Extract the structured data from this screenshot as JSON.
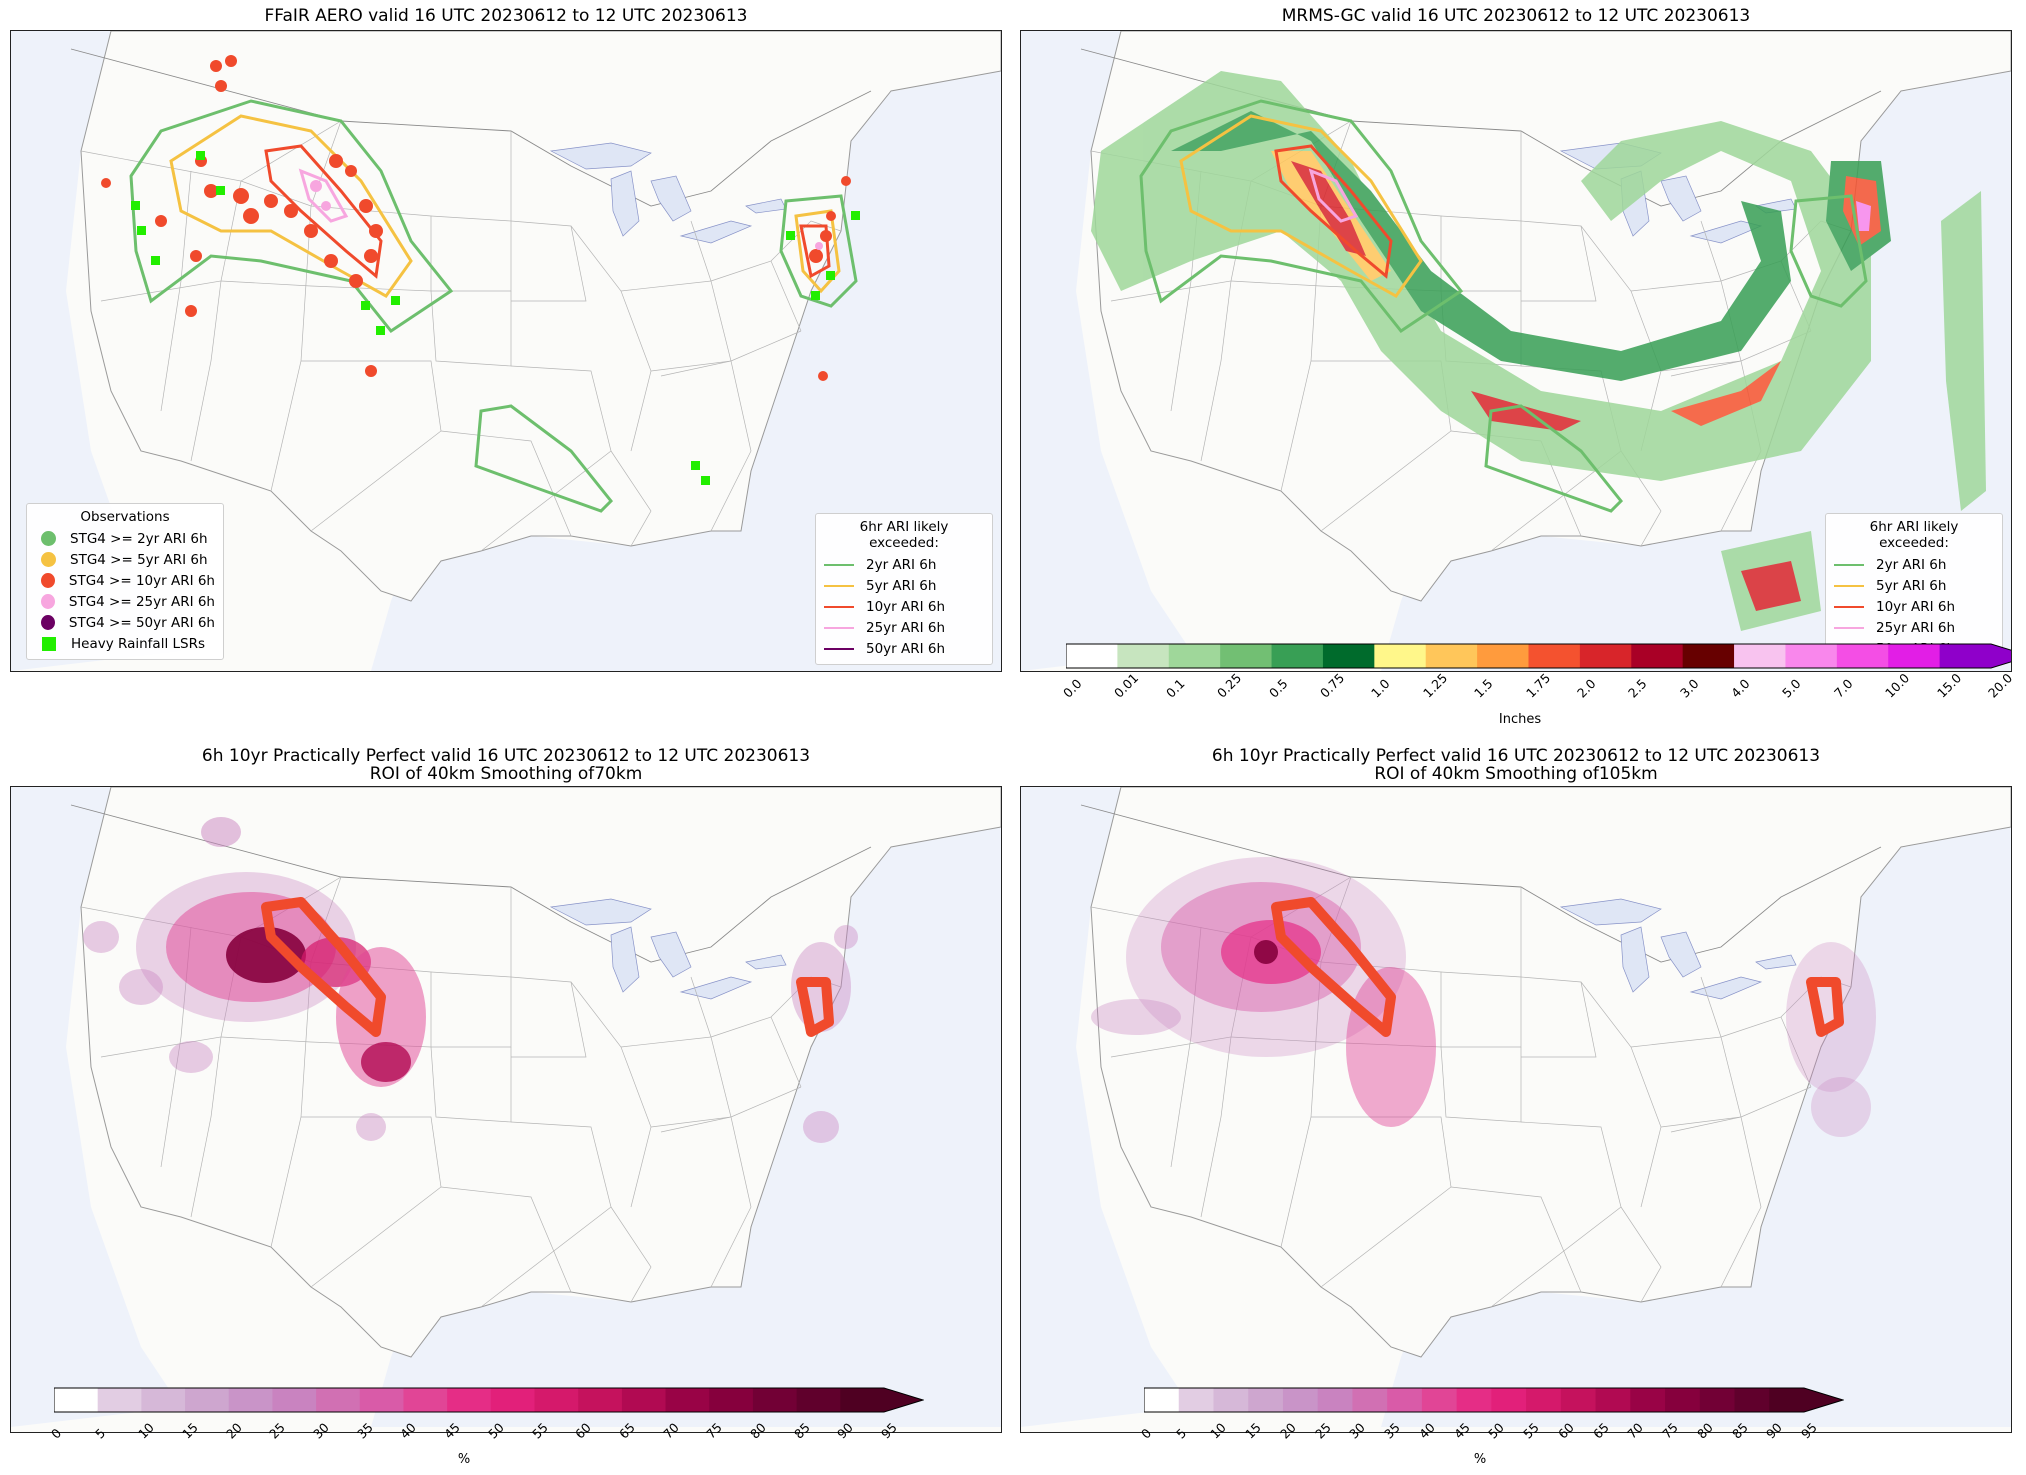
{
  "panels": [
    {
      "title": "FFaIR AERO valid 16 UTC 20230612 to 12 UTC 20230613"
    },
    {
      "title": "MRMS-GC valid 16 UTC 20230612 to 12 UTC 20230613"
    },
    {
      "title": "6h 10yr Practically Perfect valid 16 UTC 20230612 to 12 UTC 20230613",
      "subtitle": "ROI of 40km Smoothing of70km"
    },
    {
      "title": "6h 10yr Practically Perfect valid 16 UTC 20230612 to 12 UTC 20230613",
      "subtitle": "ROI of 40km Smoothing of105km"
    }
  ],
  "obs_legend": {
    "title": "Observations",
    "items": [
      {
        "label": "STG4 >= 2yr ARI 6h",
        "color": "#6dbf6d",
        "marker": "dot"
      },
      {
        "label": "STG4 >= 5yr ARI 6h",
        "color": "#f5c242",
        "marker": "dot"
      },
      {
        "label": "STG4 >= 10yr ARI 6h",
        "color": "#f04a2c",
        "marker": "dot"
      },
      {
        "label": "STG4 >= 25yr ARI 6h",
        "color": "#f7a6df",
        "marker": "dot"
      },
      {
        "label": "STG4 >= 50yr ARI 6h",
        "color": "#6b0063",
        "marker": "dot"
      },
      {
        "label": "Heavy Rainfall LSRs",
        "color": "#22ee00",
        "marker": "square"
      }
    ]
  },
  "ari_legend": {
    "title": "6hr ARI likely exceeded:",
    "items": [
      {
        "label": "2yr ARI 6h",
        "color": "#6dbf6d"
      },
      {
        "label": "5yr ARI 6h",
        "color": "#f5c242"
      },
      {
        "label": "10yr ARI 6h",
        "color": "#f04a2c"
      },
      {
        "label": "25yr ARI 6h",
        "color": "#f7a6df"
      },
      {
        "label": "50yr ARI 6h",
        "color": "#6b0063"
      }
    ]
  },
  "precip_colorbar": {
    "label": "Inches",
    "ticks": [
      "0.0",
      "0.01",
      "0.1",
      "0.25",
      "0.5",
      "0.75",
      "1.0",
      "1.25",
      "1.5",
      "1.75",
      "2.0",
      "2.5",
      "3.0",
      "4.0",
      "5.0",
      "7.0",
      "10.0",
      "15.0",
      "20.0"
    ],
    "colors": [
      "#ffffff",
      "#c7e5bf",
      "#9fd79a",
      "#72bf73",
      "#389f55",
      "#006b2c",
      "#fff78a",
      "#ffc65a",
      "#ff9b3d",
      "#f4522f",
      "#d8252a",
      "#a90026",
      "#670000",
      "#f8c3ef",
      "#f987ec",
      "#f44ee5",
      "#e21ee6",
      "#8f00ca"
    ]
  },
  "pct_colorbar": {
    "label": "%",
    "ticks": [
      "0",
      "5",
      "10",
      "15",
      "20",
      "25",
      "30",
      "35",
      "40",
      "45",
      "50",
      "55",
      "60",
      "65",
      "70",
      "75",
      "80",
      "85",
      "90",
      "95"
    ],
    "colors": [
      "#ffffff",
      "#e2cde3",
      "#d6b8d8",
      "#cea6cf",
      "#c994c8",
      "#c983c0",
      "#d170b3",
      "#d95ba8",
      "#e14596",
      "#e52d86",
      "#e2207a",
      "#d5196b",
      "#c5125d",
      "#b10a52",
      "#990346",
      "#86003d",
      "#720035",
      "#60002c",
      "#4f0022"
    ]
  }
}
